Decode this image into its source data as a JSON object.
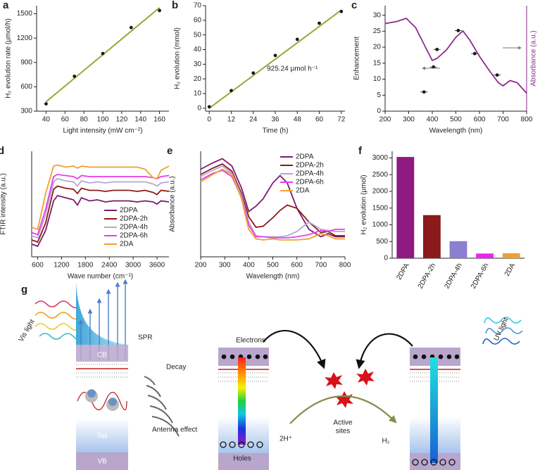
{
  "chart_data": [
    {
      "type": "scatter",
      "panel": "a",
      "xlabel": "Light intensity (mW cm⁻²)",
      "ylabel": "H₂ evolution rate (μmol/h)",
      "x": [
        40,
        70,
        100,
        130,
        160
      ],
      "values": [
        390,
        730,
        1010,
        1330,
        1540
      ],
      "color": "#1a1a1a",
      "fit": {
        "x": [
          40,
          160
        ],
        "values": [
          415,
          1575
        ],
        "color": "#9aa63a"
      },
      "xlim": [
        30,
        170
      ],
      "xticks": [
        40,
        60,
        80,
        100,
        120,
        140,
        160
      ],
      "ylim": [
        300,
        1600
      ],
      "yticks": [
        300,
        600,
        900,
        1200,
        1500
      ]
    },
    {
      "type": "scatter",
      "panel": "b",
      "xlabel": "Time (h)",
      "ylabel": "H₂ evolution (mmol)",
      "annotation": "925.24 μmol h⁻¹",
      "x": [
        0,
        12,
        24,
        36,
        48,
        60,
        72
      ],
      "values": [
        1,
        12,
        24,
        36,
        47,
        58,
        66
      ],
      "color": "#1a1a1a",
      "fit": {
        "x": [
          0,
          72
        ],
        "values": [
          0,
          67
        ],
        "color": "#9aa63a"
      },
      "xlim": [
        -2,
        74
      ],
      "xticks": [
        0,
        12,
        24,
        36,
        48,
        60,
        72
      ],
      "ylim": [
        -2,
        70
      ],
      "yticks": [
        0,
        10,
        20,
        30,
        40,
        50,
        60,
        70
      ]
    },
    {
      "type": "line",
      "panel": "c",
      "xlabel": "Wavelength (nm)",
      "ylabel": "Enhancement",
      "y2label": "Absorbance (a.u.)",
      "series": [
        {
          "x": [
            365,
            405,
            420,
            510,
            580,
            675
          ],
          "values": [
            6,
            13.8,
            19.3,
            25.2,
            18,
            11.3
          ],
          "xerr": [
            15,
            15,
            15,
            15,
            15,
            15
          ],
          "color": "#1a1a1a",
          "mode": "markers"
        },
        {
          "x": [
            200,
            250,
            290,
            330,
            370,
            400,
            420,
            460,
            500,
            530,
            560,
            600,
            640,
            680,
            700,
            730,
            760,
            800
          ],
          "values": [
            0.83,
            0.85,
            0.88,
            0.79,
            0.61,
            0.48,
            0.5,
            0.58,
            0.7,
            0.76,
            0.67,
            0.52,
            0.39,
            0.27,
            0.24,
            0.29,
            0.27,
            0.17
          ],
          "color": "#8e2a8e",
          "axis": "y2"
        }
      ],
      "xlim": [
        200,
        800
      ],
      "xticks": [
        200,
        300,
        400,
        500,
        600,
        700,
        800
      ],
      "ylim": [
        0,
        33
      ],
      "yticks": [
        0,
        5,
        10,
        15,
        20,
        25,
        30
      ],
      "y2lim": [
        0,
        1
      ],
      "y2color": "#8e2a8e"
    },
    {
      "type": "line",
      "panel": "d",
      "xlabel": "Wave number (cm⁻¹)",
      "ylabel": "FTIR intensity (a.u.)",
      "legend": "lower right",
      "x": [
        450,
        600,
        800,
        1000,
        1100,
        1300,
        1500,
        1600,
        1700,
        1900,
        2100,
        2300,
        2500,
        2700,
        2900,
        3100,
        3300,
        3500,
        3600,
        3700,
        3900
      ],
      "series": [
        {
          "name": "2DPA",
          "color": "#7b1c6e",
          "values": [
            1.2,
            1.0,
            2.5,
            5.3,
            5.8,
            5.6,
            5.4,
            4.9,
            5.6,
            5.3,
            5.4,
            5.2,
            5.3,
            5.3,
            5.3,
            5.2,
            5.3,
            5.2,
            5.0,
            5.3,
            5.2
          ]
        },
        {
          "name": "2DPA-2h",
          "color": "#8b1a1a",
          "values": [
            1.6,
            1.4,
            3.2,
            6.4,
            6.7,
            6.5,
            6.4,
            6.0,
            6.5,
            6.3,
            6.3,
            6.2,
            6.3,
            6.3,
            6.3,
            6.2,
            6.3,
            6.1,
            5.9,
            6.3,
            6.2
          ]
        },
        {
          "name": "2DPA-4h",
          "color": "#b4a7d6",
          "values": [
            2.0,
            1.8,
            4.0,
            7.1,
            7.4,
            7.2,
            7.1,
            6.7,
            7.2,
            7.0,
            7.1,
            7.0,
            7.1,
            7.1,
            7.1,
            7.1,
            7.1,
            6.9,
            6.7,
            7.0,
            7.1
          ]
        },
        {
          "name": "2DPA-6h",
          "color": "#e83ee8",
          "values": [
            2.3,
            2.1,
            4.5,
            7.6,
            7.8,
            7.7,
            7.6,
            7.4,
            7.7,
            7.6,
            7.6,
            7.6,
            7.6,
            7.6,
            7.6,
            7.6,
            7.6,
            7.5,
            7.4,
            7.6,
            7.7
          ]
        },
        {
          "name": "2DA",
          "color": "#f0a030",
          "values": [
            2.8,
            2.6,
            6.0,
            8.6,
            8.7,
            8.5,
            8.6,
            8.4,
            8.6,
            8.5,
            8.5,
            8.5,
            8.5,
            8.5,
            8.5,
            8.5,
            8.3,
            7.5,
            7.4,
            8.2,
            8.6
          ]
        }
      ],
      "xlim": [
        450,
        3900
      ],
      "xticks": [
        600,
        1200,
        1800,
        2400,
        3000,
        3600
      ],
      "ylim": [
        0,
        10
      ]
    },
    {
      "type": "line",
      "panel": "e",
      "xlabel": "Wavelength (nm)",
      "ylabel": "Absorbance (a.u.)",
      "legend": "upper right",
      "x": [
        200,
        250,
        290,
        330,
        370,
        400,
        430,
        460,
        500,
        530,
        560,
        600,
        650,
        700,
        730,
        760,
        800
      ],
      "series": [
        {
          "name": "2DPA",
          "color": "#7b1c6e",
          "values": [
            8.3,
            8.9,
            9.3,
            8.6,
            6.5,
            4.3,
            4.8,
            5.5,
            7.0,
            7.7,
            7.0,
            4.6,
            2.6,
            1.9,
            2.2,
            1.9,
            1.9
          ]
        },
        {
          "name": "2DPA-2h",
          "color": "#8b1a1a",
          "values": [
            7.8,
            8.4,
            8.8,
            8.1,
            6.0,
            3.8,
            2.8,
            2.9,
            3.7,
            4.4,
            4.9,
            4.6,
            3.3,
            2.3,
            2.4,
            2.0,
            2.0
          ]
        },
        {
          "name": "2DPA-4h",
          "color": "#b4a7d6",
          "values": [
            7.6,
            8.2,
            8.6,
            7.9,
            5.8,
            3.3,
            2.0,
            1.9,
            1.9,
            1.9,
            2.0,
            2.4,
            3.3,
            2.6,
            2.5,
            2.4,
            2.4
          ]
        },
        {
          "name": "2DPA-6h",
          "color": "#e83ee8",
          "values": [
            7.3,
            7.9,
            8.2,
            7.6,
            5.6,
            3.0,
            1.9,
            1.9,
            1.8,
            1.8,
            1.8,
            1.9,
            2.1,
            2.5,
            2.4,
            2.6,
            2.6
          ]
        },
        {
          "name": "2DA",
          "color": "#f0a030",
          "values": [
            7.1,
            7.8,
            8.3,
            7.8,
            5.5,
            2.6,
            1.7,
            1.6,
            1.7,
            1.6,
            1.6,
            1.6,
            1.7,
            2.2,
            2.0,
            1.7,
            1.7
          ]
        }
      ],
      "xlim": [
        200,
        800
      ],
      "xticks": [
        200,
        300,
        400,
        500,
        600,
        700,
        800
      ],
      "ylim": [
        0,
        10
      ]
    },
    {
      "type": "bar",
      "panel": "f",
      "ylabel": "H₂ evolution (μmol)",
      "categories": [
        "2DPA",
        "2DPA-2h",
        "2DPA-4h",
        "2DPA-6h",
        "2DA"
      ],
      "values": [
        3030,
        1290,
        510,
        140,
        150
      ],
      "colors": [
        "#8e1a82",
        "#8b1a1a",
        "#8a7fd0",
        "#ee22ee",
        "#f0a030"
      ],
      "ylim": [
        0,
        3200
      ],
      "yticks": [
        0,
        500,
        1000,
        1500,
        2000,
        2500,
        3000
      ]
    }
  ],
  "diagram": {
    "label": "g",
    "vis_light": "Vis light",
    "spr": "SPR",
    "cb": "CB",
    "tail": "Tail",
    "vb": "VB",
    "decay": "Decay",
    "antenna": "Antenna effect",
    "electrons": "Electrons",
    "holes": "Holes",
    "h_plus": "2H⁺",
    "active_sites": [
      "Active",
      "sites"
    ],
    "h2": "H₂",
    "uv_light": "UV light"
  }
}
